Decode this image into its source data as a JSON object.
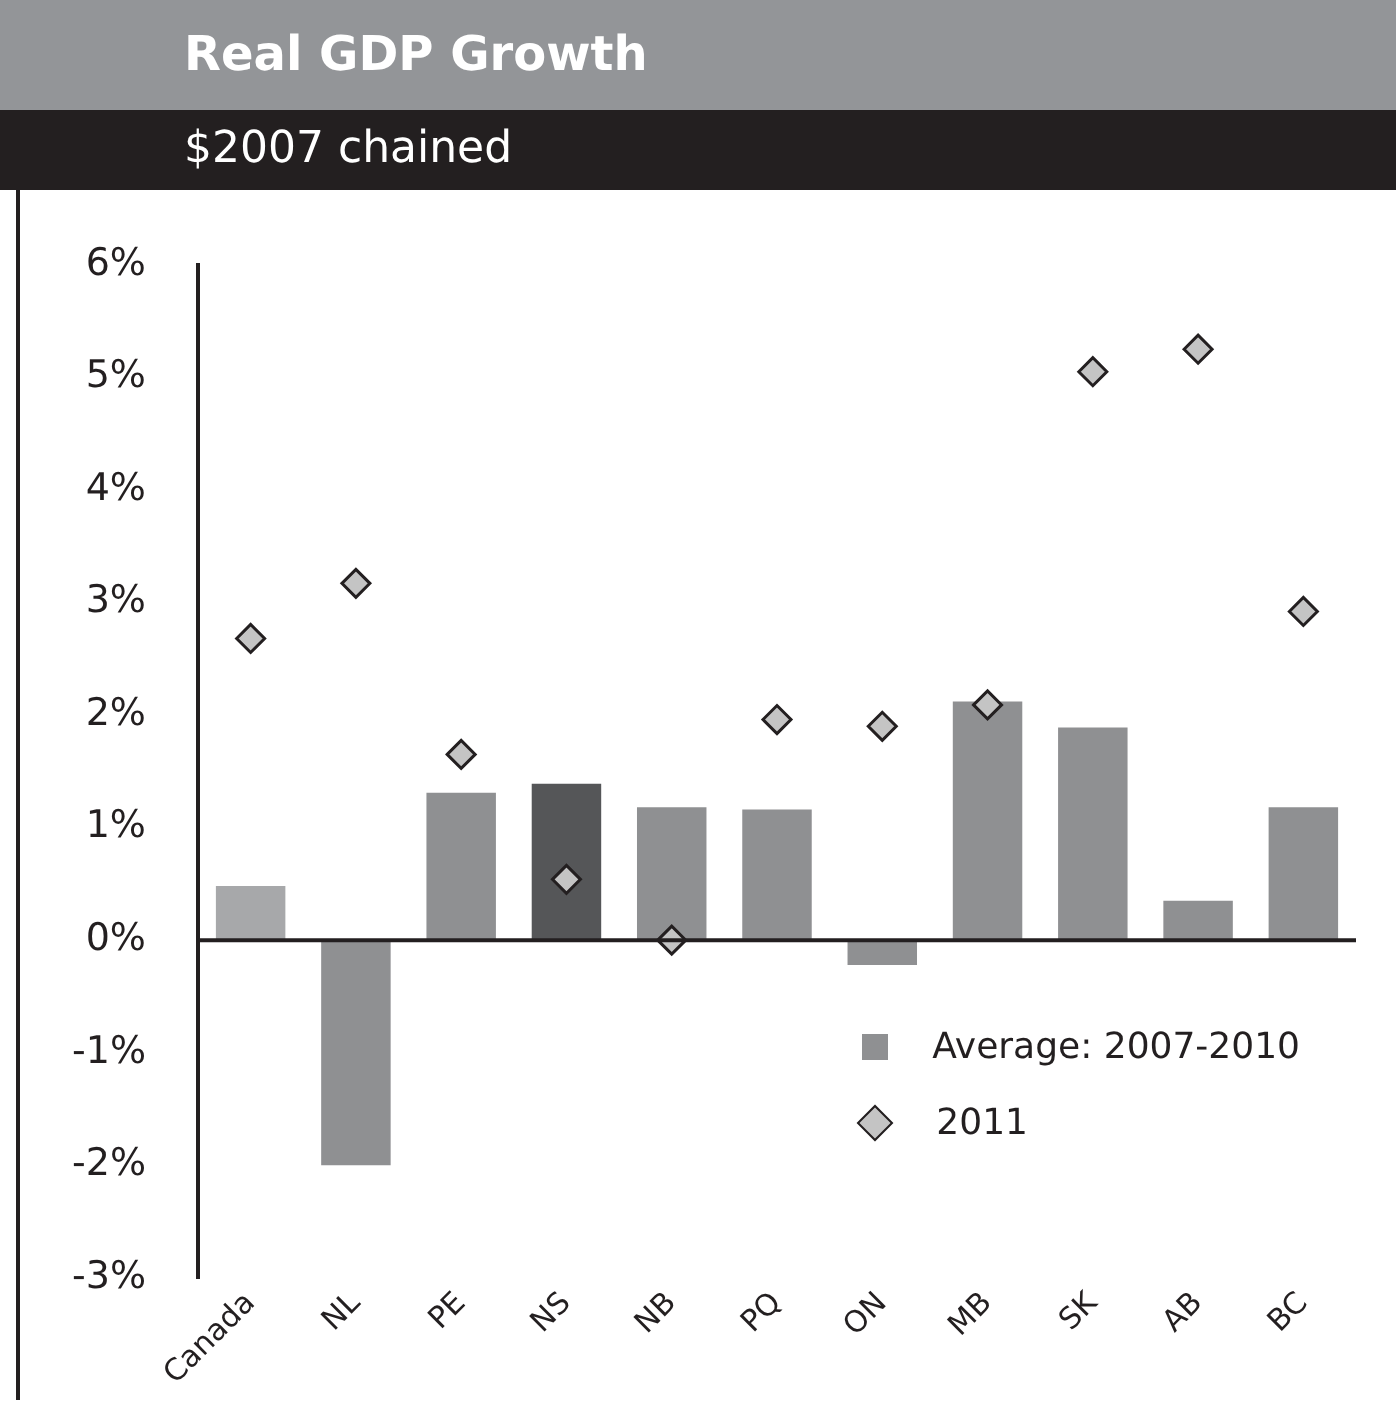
{
  "chart_data": {
    "type": "bar",
    "title": "Real GDP Growth",
    "subtitle": "$2007 chained",
    "categories": [
      "Canada",
      "NL",
      "PE",
      "NS",
      "NB",
      "PQ",
      "ON",
      "MB",
      "SK",
      "AB",
      "BC"
    ],
    "series": [
      {
        "name": "Average: 2007-2010",
        "color": "#8f9092",
        "colors": [
          "#a7a8aa",
          "#8f9092",
          "#8f9092",
          "#555658",
          "#8f9092",
          "#8f9092",
          "#8f9092",
          "#8f9092",
          "#8f9092",
          "#8f9092",
          "#8f9092"
        ],
        "values": [
          0.48,
          -2.0,
          1.31,
          1.39,
          1.18,
          1.16,
          -0.22,
          2.12,
          1.89,
          0.35,
          1.18
        ]
      },
      {
        "name": "2011",
        "type": "scatter",
        "color": "#c4c4c4",
        "marker": "diamond",
        "x": [
          "Canada",
          "NL",
          "PE",
          "NS",
          "NB",
          "PQ",
          "ON",
          "MB",
          "SK",
          "AB",
          "BC"
        ],
        "values": [
          2.68,
          3.17,
          1.65,
          0.54,
          0.0,
          1.96,
          1.9,
          2.09,
          5.05,
          5.25,
          2.92
        ]
      }
    ],
    "ylim": [
      -3,
      6
    ],
    "yticks": [
      {
        "value": -3,
        "label": "-3%"
      },
      {
        "value": -2,
        "label": "-2%"
      },
      {
        "value": -1,
        "label": "-1%"
      },
      {
        "value": 0,
        "label": "0%"
      },
      {
        "value": 1,
        "label": "1%"
      },
      {
        "value": 2,
        "label": "2%"
      },
      {
        "value": 3,
        "label": "3%"
      },
      {
        "value": 4,
        "label": "4%"
      },
      {
        "value": 5,
        "label": "5%"
      },
      {
        "value": 6,
        "label": "6%"
      }
    ],
    "ref_lines": [
      {
        "axis": "y",
        "value": 0,
        "color": "#231f20"
      }
    ],
    "grid": false,
    "legend": "bottom right"
  }
}
